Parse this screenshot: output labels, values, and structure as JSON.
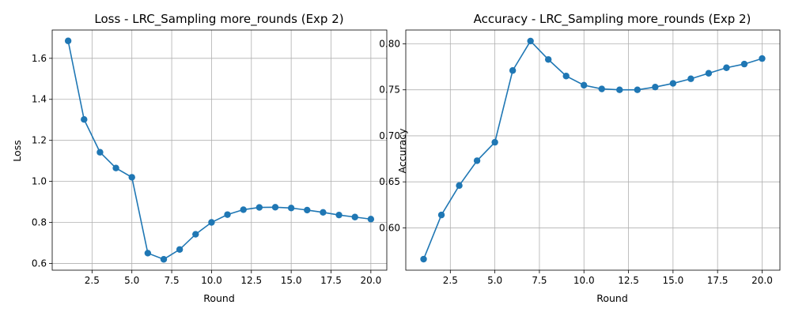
{
  "chart_data": [
    {
      "type": "line",
      "title": "Loss - LRC_Sampling more_rounds (Exp 2)",
      "xlabel": "Round",
      "ylabel": "Loss",
      "grid": true,
      "marker": "circle",
      "x": [
        1,
        2,
        3,
        4,
        5,
        6,
        7,
        8,
        9,
        10,
        11,
        12,
        13,
        14,
        15,
        16,
        17,
        18,
        19,
        20
      ],
      "series": [
        {
          "color": "#1f77b4",
          "values": [
            1.685,
            1.302,
            1.142,
            1.065,
            1.02,
            0.65,
            0.62,
            0.668,
            0.742,
            0.8,
            0.838,
            0.862,
            0.873,
            0.874,
            0.87,
            0.86,
            0.849,
            0.836,
            0.826,
            0.816
          ]
        }
      ],
      "xlim": [
        -0.0,
        21.0
      ],
      "ylim": [
        0.567,
        1.738
      ],
      "xticks": [
        "2.5",
        "5.0",
        "7.5",
        "10.0",
        "12.5",
        "15.0",
        "17.5",
        "20.0"
      ],
      "yticks": [
        "0.6",
        "0.8",
        "1.0",
        "1.2",
        "1.4",
        "1.6"
      ]
    },
    {
      "type": "line",
      "title": "Accuracy - LRC_Sampling more_rounds (Exp 2)",
      "xlabel": "Round",
      "ylabel": "Accuracy",
      "grid": true,
      "marker": "circle",
      "x": [
        1,
        2,
        3,
        4,
        5,
        6,
        7,
        8,
        9,
        10,
        11,
        12,
        13,
        14,
        15,
        16,
        17,
        18,
        19,
        20
      ],
      "series": [
        {
          "color": "#1f77b4",
          "values": [
            0.566,
            0.614,
            0.646,
            0.673,
            0.693,
            0.771,
            0.803,
            0.783,
            0.765,
            0.755,
            0.751,
            0.75,
            0.75,
            0.753,
            0.757,
            0.762,
            0.768,
            0.774,
            0.778,
            0.784
          ]
        }
      ],
      "xlim": [
        -0.0,
        21.0
      ],
      "ylim": [
        0.554,
        0.815
      ],
      "xticks": [
        "2.5",
        "5.0",
        "7.5",
        "10.0",
        "12.5",
        "15.0",
        "17.5",
        "20.0"
      ],
      "yticks": [
        "0.60",
        "0.65",
        "0.70",
        "0.75",
        "0.80"
      ]
    }
  ]
}
